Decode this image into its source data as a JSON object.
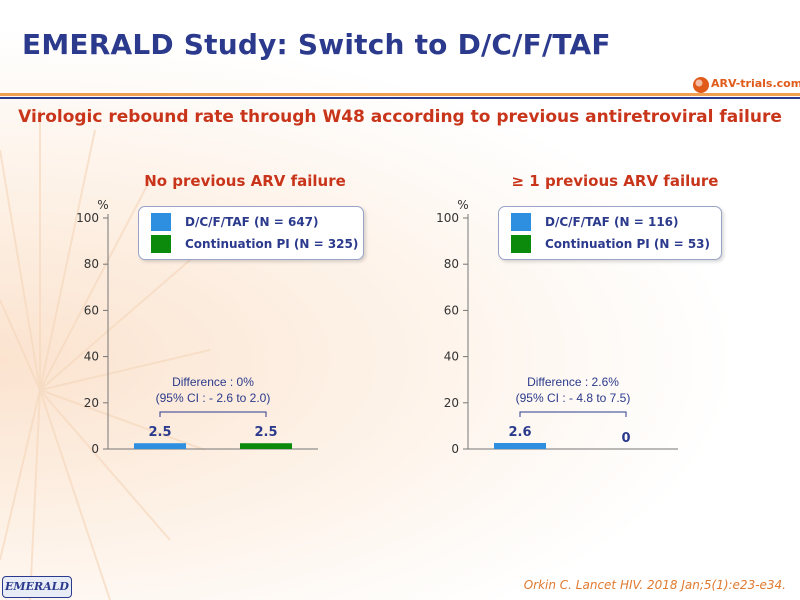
{
  "header": {
    "title": "EMERALD Study: Switch to D/C/F/TAF",
    "logo_text": "ARV-trials.com",
    "subtitle": "Virologic rebound rate through W48 according to previous antiretroviral failure"
  },
  "colors": {
    "title": "#2b3a8c",
    "accent": "#c8351a",
    "dcftaf": "#2e8fe0",
    "continuation": "#0b8a0b"
  },
  "chart_data": [
    {
      "type": "bar",
      "title": "No previous ARV failure",
      "ylabel": "%",
      "ylim": [
        0,
        100
      ],
      "yticks": [
        "100",
        "80",
        "60",
        "40",
        "20",
        "0"
      ],
      "series": [
        {
          "name": "D/C/F/TAF (N = 647)",
          "value": 2.5,
          "label": "2.5"
        },
        {
          "name": "Continuation PI (N = 325)",
          "value": 2.5,
          "label": "2.5"
        }
      ],
      "annotation": {
        "line1": "Difference : 0%",
        "line2": "(95% CI : - 2.6 to 2.0)"
      },
      "legend_position": "top-right"
    },
    {
      "type": "bar",
      "title": "≥ 1 previous ARV failure",
      "ylabel": "%",
      "ylim": [
        0,
        100
      ],
      "yticks": [
        "100",
        "80",
        "60",
        "40",
        "20",
        "0"
      ],
      "series": [
        {
          "name": "D/C/F/TAF (N = 116)",
          "value": 2.6,
          "label": "2.6"
        },
        {
          "name": "Continuation PI (N = 53)",
          "value": 0,
          "label": "0"
        }
      ],
      "annotation": {
        "line1": "Difference : 2.6%",
        "line2": "(95% CI : - 4.8 to 7.5)"
      },
      "legend_position": "top-right"
    }
  ],
  "footer": {
    "badge": "EMERALD",
    "reference": "Orkin C. Lancet HIV. 2018 Jan;5(1):e23-e34."
  }
}
